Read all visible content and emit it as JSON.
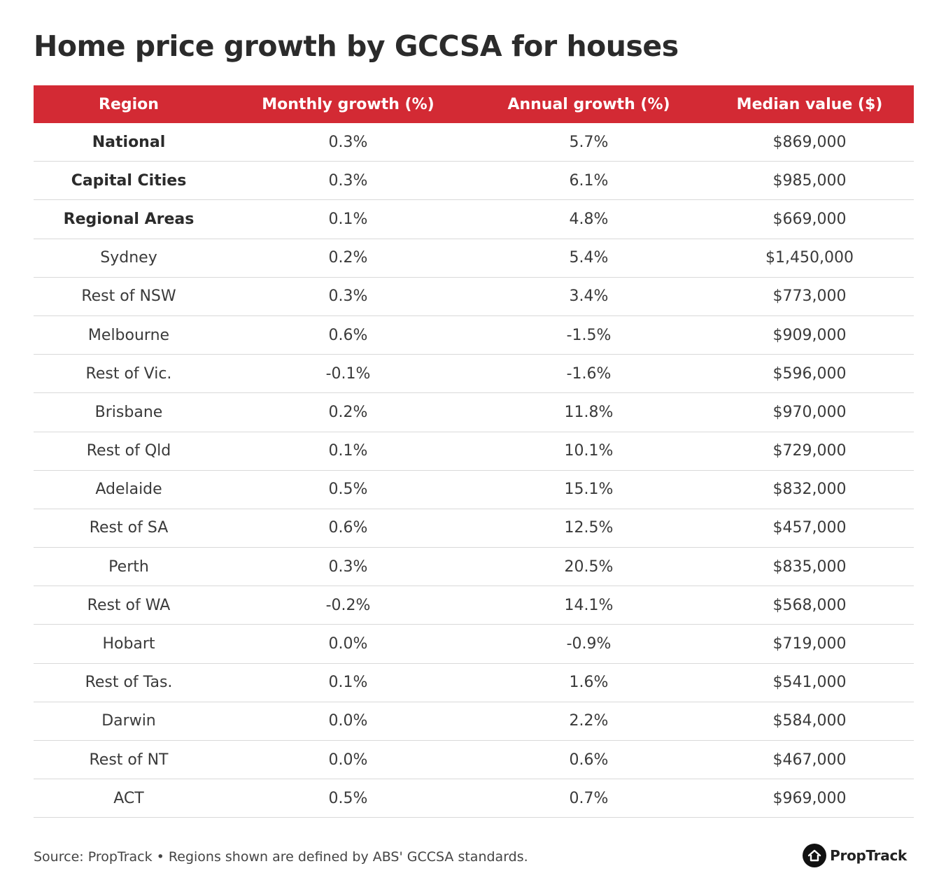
{
  "title": "Home price growth by GCCSA for houses",
  "colors": {
    "header_bg": "#d32a34",
    "header_text": "#ffffff",
    "row_divider": "#d9d9d9"
  },
  "chart_data": {
    "type": "table",
    "title": "Home price growth by GCCSA for houses",
    "columns": [
      "Region",
      "Monthly growth (%)",
      "Annual growth (%)",
      "Median value ($)"
    ],
    "rows": [
      {
        "region": "National",
        "monthly": "0.3%",
        "annual": "5.7%",
        "median": "$869,000",
        "bold": true
      },
      {
        "region": "Capital Cities",
        "monthly": "0.3%",
        "annual": "6.1%",
        "median": "$985,000",
        "bold": true
      },
      {
        "region": "Regional Areas",
        "monthly": "0.1%",
        "annual": "4.8%",
        "median": "$669,000",
        "bold": true
      },
      {
        "region": "Sydney",
        "monthly": "0.2%",
        "annual": "5.4%",
        "median": "$1,450,000",
        "bold": false
      },
      {
        "region": "Rest of NSW",
        "monthly": "0.3%",
        "annual": "3.4%",
        "median": "$773,000",
        "bold": false
      },
      {
        "region": "Melbourne",
        "monthly": "0.6%",
        "annual": "-1.5%",
        "median": "$909,000",
        "bold": false
      },
      {
        "region": "Rest of Vic.",
        "monthly": "-0.1%",
        "annual": "-1.6%",
        "median": "$596,000",
        "bold": false
      },
      {
        "region": "Brisbane",
        "monthly": "0.2%",
        "annual": "11.8%",
        "median": "$970,000",
        "bold": false
      },
      {
        "region": "Rest of Qld",
        "monthly": "0.1%",
        "annual": "10.1%",
        "median": "$729,000",
        "bold": false
      },
      {
        "region": "Adelaide",
        "monthly": "0.5%",
        "annual": "15.1%",
        "median": "$832,000",
        "bold": false
      },
      {
        "region": "Rest of SA",
        "monthly": "0.6%",
        "annual": "12.5%",
        "median": "$457,000",
        "bold": false
      },
      {
        "region": "Perth",
        "monthly": "0.3%",
        "annual": "20.5%",
        "median": "$835,000",
        "bold": false
      },
      {
        "region": "Rest of WA",
        "monthly": "-0.2%",
        "annual": "14.1%",
        "median": "$568,000",
        "bold": false
      },
      {
        "region": "Hobart",
        "monthly": "0.0%",
        "annual": "-0.9%",
        "median": "$719,000",
        "bold": false
      },
      {
        "region": "Rest of Tas.",
        "monthly": "0.1%",
        "annual": "1.6%",
        "median": "$541,000",
        "bold": false
      },
      {
        "region": "Darwin",
        "monthly": "0.0%",
        "annual": "2.2%",
        "median": "$584,000",
        "bold": false
      },
      {
        "region": "Rest of NT",
        "monthly": "0.0%",
        "annual": "0.6%",
        "median": "$467,000",
        "bold": false
      },
      {
        "region": "ACT",
        "monthly": "0.5%",
        "annual": "0.7%",
        "median": "$969,000",
        "bold": false
      }
    ]
  },
  "footer": {
    "source": "Source: PropTrack • Regions shown are defined by ABS' GCCSA standards.",
    "brand": "PropTrack",
    "brand_icon": "house-icon"
  }
}
